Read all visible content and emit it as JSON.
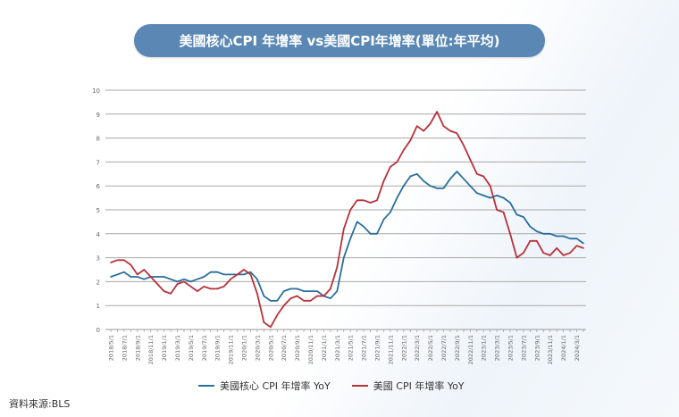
{
  "chart_data": {
    "type": "line",
    "title": "美國核心CPI 年增率 vs美國CPI年增率(單位:年平均)",
    "ylim": [
      0,
      10
    ],
    "yticks": [
      "0",
      "1",
      "2",
      "3",
      "4",
      "5",
      "6",
      "7",
      "8",
      "9",
      "10"
    ],
    "grid": true,
    "legend_position": "bottom",
    "x_tick_labels": [
      "2018/5/1",
      "2018/7/1",
      "2018/9/1",
      "2018/11/1",
      "2019/1/1",
      "2019/3/1",
      "2019/5/1",
      "2019/7/1",
      "2019/9/1",
      "2019/11/1",
      "2020/1/1",
      "2020/3/1",
      "2020/5/1",
      "2020/7/1",
      "2020/9/1",
      "2020/11/1",
      "2021/1/1",
      "2021/3/1",
      "2021/5/1",
      "2021/7/1",
      "2021/9/1",
      "2021/11/1",
      "2022/1/1",
      "2022/3/1",
      "2022/5/1",
      "2022/7/1",
      "2022/9/1",
      "2022/11/1",
      "2023/1/1",
      "2023/3/1",
      "2023/5/1",
      "2023/7/1",
      "2023/9/1",
      "2023/11/1",
      "2024/1/1",
      "2024/3/1"
    ],
    "x_start": "2018/5",
    "x_end": "2024/4",
    "frequency": "monthly",
    "series": [
      {
        "name": "美國核心 CPI 年增率 YoY",
        "color": "#2a6f9b",
        "values": [
          2.2,
          2.3,
          2.4,
          2.2,
          2.2,
          2.1,
          2.2,
          2.2,
          2.2,
          2.1,
          2.0,
          2.1,
          2.0,
          2.1,
          2.2,
          2.4,
          2.4,
          2.3,
          2.3,
          2.3,
          2.3,
          2.4,
          2.1,
          1.4,
          1.2,
          1.2,
          1.6,
          1.7,
          1.7,
          1.6,
          1.6,
          1.6,
          1.4,
          1.3,
          1.6,
          3.0,
          3.8,
          4.5,
          4.3,
          4.0,
          4.0,
          4.6,
          4.9,
          5.5,
          6.0,
          6.4,
          6.5,
          6.2,
          6.0,
          5.9,
          5.9,
          6.3,
          6.6,
          6.3,
          6.0,
          5.7,
          5.6,
          5.5,
          5.6,
          5.5,
          5.3,
          4.8,
          4.7,
          4.3,
          4.1,
          4.0,
          4.0,
          3.9,
          3.9,
          3.8,
          3.8,
          3.6
        ]
      },
      {
        "name": "美國 CPI 年增率 YoY",
        "color": "#b8313a",
        "values": [
          2.8,
          2.9,
          2.9,
          2.7,
          2.3,
          2.5,
          2.2,
          1.9,
          1.6,
          1.5,
          1.9,
          2.0,
          1.8,
          1.6,
          1.8,
          1.7,
          1.7,
          1.8,
          2.1,
          2.3,
          2.5,
          2.3,
          1.5,
          0.3,
          0.1,
          0.6,
          1.0,
          1.3,
          1.4,
          1.2,
          1.2,
          1.4,
          1.4,
          1.7,
          2.6,
          4.2,
          5.0,
          5.4,
          5.4,
          5.3,
          5.4,
          6.2,
          6.8,
          7.0,
          7.5,
          7.9,
          8.5,
          8.3,
          8.6,
          9.1,
          8.5,
          8.3,
          8.2,
          7.7,
          7.1,
          6.5,
          6.4,
          6.0,
          5.0,
          4.9,
          4.0,
          3.0,
          3.2,
          3.7,
          3.7,
          3.2,
          3.1,
          3.4,
          3.1,
          3.2,
          3.5,
          3.4
        ]
      }
    ]
  },
  "source": "資料來源:BLS"
}
